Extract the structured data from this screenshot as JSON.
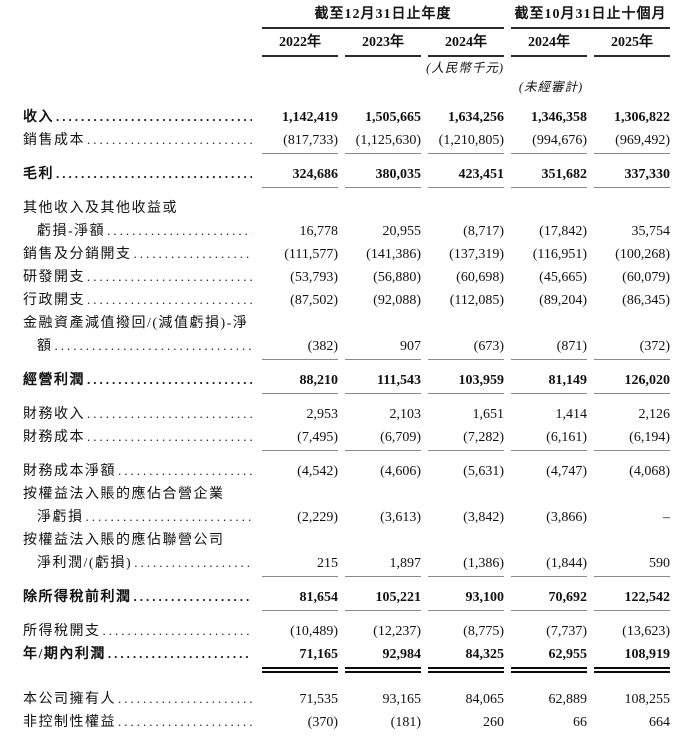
{
  "colors": {
    "background": "#ffffff",
    "text": "#111111",
    "header_rule": "#2b2b2b",
    "subtotal_rule": "#8a8a8a",
    "total_rule": "#0a0a0a"
  },
  "header": {
    "groups": [
      {
        "title": "截至12月31日止年度",
        "years": [
          "2022年",
          "2023年",
          "2024年"
        ]
      },
      {
        "title": "截至10月31日止十個月",
        "years": [
          "2024年",
          "2025年"
        ]
      }
    ],
    "currency_note": "(人民幣千元)",
    "unaudited_note": "(未經審計)"
  },
  "table": {
    "rows": [
      {
        "label": "收入",
        "bold": true,
        "values": [
          "1,142,419",
          "1,505,665",
          "1,634,256",
          "1,346,358",
          "1,306,822"
        ]
      },
      {
        "label": "銷售成本",
        "values": [
          "(817,733)",
          "(1,125,630)",
          "(1,210,805)",
          "(994,676)",
          "(969,492)"
        ],
        "rule": "single"
      },
      {
        "label": "毛利",
        "bold": true,
        "gap": true,
        "values": [
          "324,686",
          "380,035",
          "423,451",
          "351,682",
          "337,330"
        ],
        "rule": "single"
      },
      {
        "label": "其他收入及其他收益或",
        "gap": true,
        "values": null
      },
      {
        "label": "虧損-淨額",
        "indent": true,
        "values": [
          "16,778",
          "20,955",
          "(8,717)",
          "(17,842)",
          "35,754"
        ]
      },
      {
        "label": "銷售及分銷開支",
        "values": [
          "(111,577)",
          "(141,386)",
          "(137,319)",
          "(116,951)",
          "(100,268)"
        ]
      },
      {
        "label": "研發開支",
        "values": [
          "(53,793)",
          "(56,880)",
          "(60,698)",
          "(45,665)",
          "(60,079)"
        ]
      },
      {
        "label": "行政開支",
        "values": [
          "(87,502)",
          "(92,088)",
          "(112,085)",
          "(89,204)",
          "(86,345)"
        ]
      },
      {
        "label": "金融資產減值撥回/(減值虧損)-淨",
        "values": null
      },
      {
        "label": "額",
        "indent": true,
        "values": [
          "(382)",
          "907",
          "(673)",
          "(871)",
          "(372)"
        ],
        "rule": "single"
      },
      {
        "label": "經營利潤",
        "bold": true,
        "gap": true,
        "values": [
          "88,210",
          "111,543",
          "103,959",
          "81,149",
          "126,020"
        ],
        "rule": "single"
      },
      {
        "label": "財務收入",
        "gap": true,
        "values": [
          "2,953",
          "2,103",
          "1,651",
          "1,414",
          "2,126"
        ]
      },
      {
        "label": "財務成本",
        "values": [
          "(7,495)",
          "(6,709)",
          "(7,282)",
          "(6,161)",
          "(6,194)"
        ],
        "rule": "single"
      },
      {
        "label": "財務成本淨額",
        "gap": true,
        "values": [
          "(4,542)",
          "(4,606)",
          "(5,631)",
          "(4,747)",
          "(4,068)"
        ]
      },
      {
        "label": "按權益法入賬的應佔合營企業",
        "values": null
      },
      {
        "label": "淨虧損",
        "indent": true,
        "values": [
          "(2,229)",
          "(3,613)",
          "(3,842)",
          "(3,866)",
          "–"
        ]
      },
      {
        "label": "按權益法入賬的應佔聯營公司",
        "values": null
      },
      {
        "label": "淨利潤/(虧損)",
        "indent": true,
        "values": [
          "215",
          "1,897",
          "(1,386)",
          "(1,844)",
          "590"
        ],
        "rule": "single"
      },
      {
        "label": "除所得稅前利潤",
        "bold": true,
        "gap": true,
        "values": [
          "81,654",
          "105,221",
          "93,100",
          "70,692",
          "122,542"
        ],
        "rule": "single"
      },
      {
        "label": "所得稅開支",
        "gap": true,
        "values": [
          "(10,489)",
          "(12,237)",
          "(8,775)",
          "(7,737)",
          "(13,623)"
        ]
      },
      {
        "label": "年/期內利潤",
        "bold": true,
        "values": [
          "71,165",
          "92,984",
          "84,325",
          "62,955",
          "108,919"
        ],
        "rule": "double"
      },
      {
        "label": "本公司擁有人",
        "gap": "lg",
        "values": [
          "71,535",
          "93,165",
          "84,065",
          "62,889",
          "108,255"
        ]
      },
      {
        "label": "非控制性權益",
        "values": [
          "(370)",
          "(181)",
          "260",
          "66",
          "664"
        ]
      }
    ]
  }
}
